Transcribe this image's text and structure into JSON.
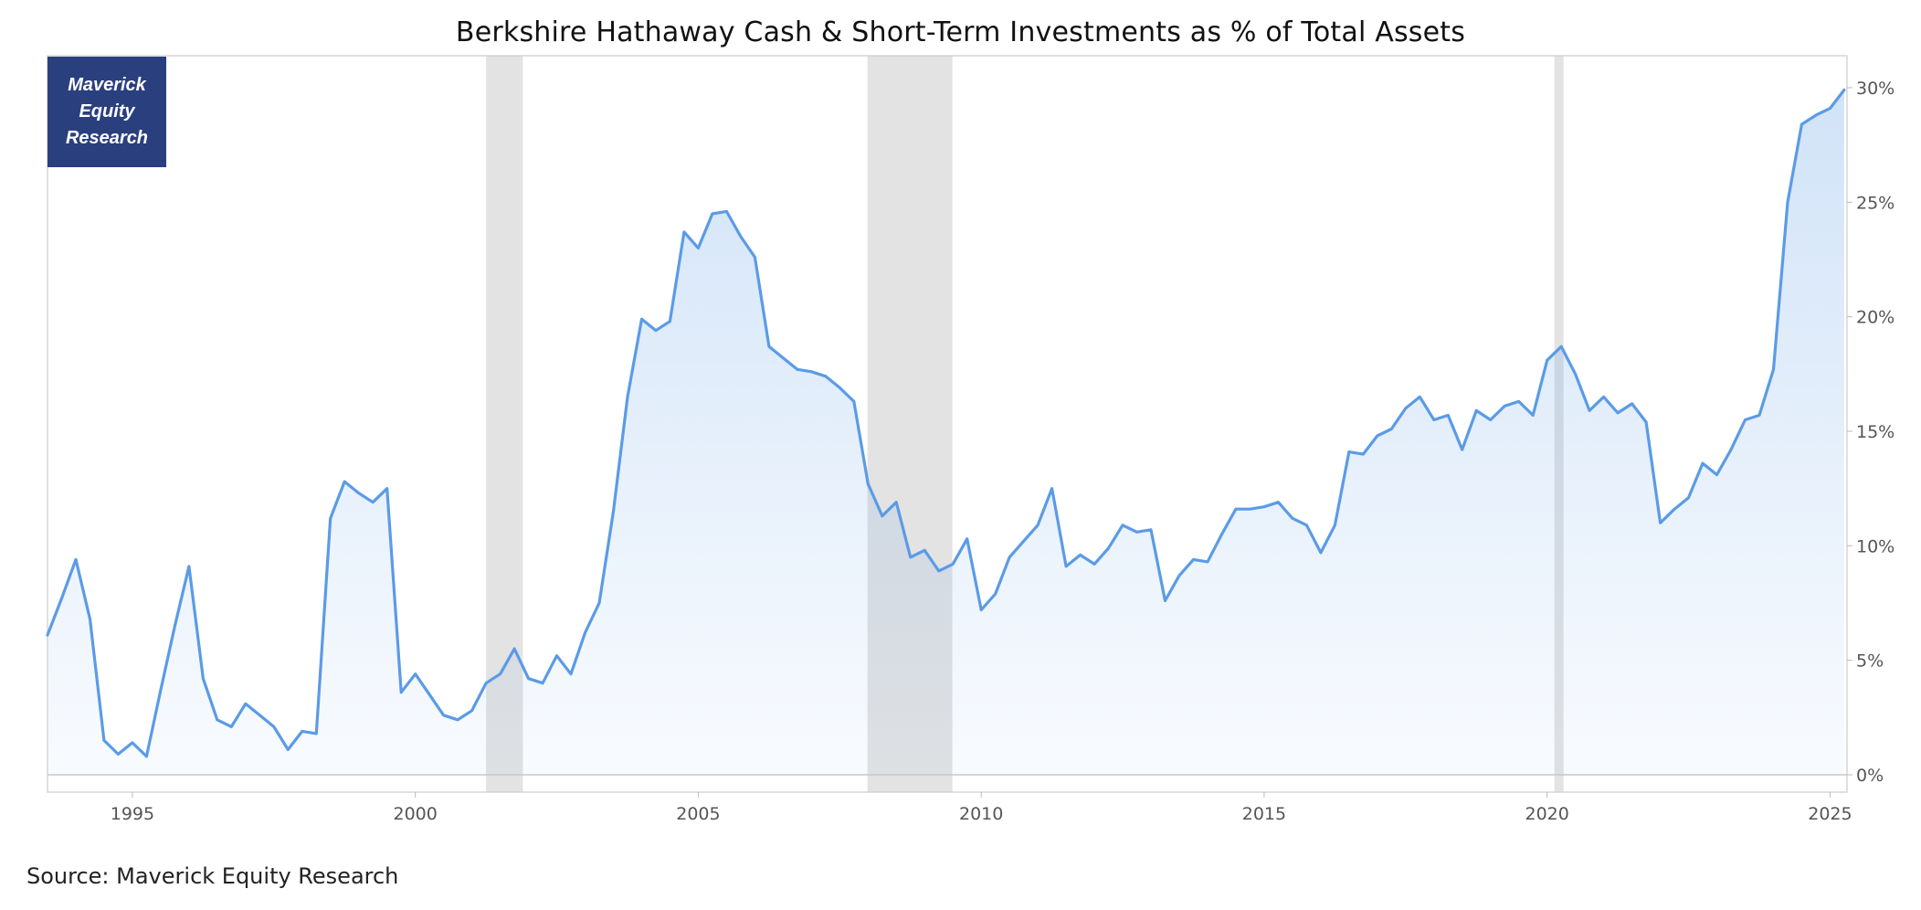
{
  "title": "Berkshire Hathaway Cash & Short-Term Investments as % of Total Assets",
  "logo": {
    "lines": [
      "Maverick",
      "Equity",
      "Research"
    ]
  },
  "source": "Source: Maverick Equity Research",
  "colors": {
    "line": "#5b9be6",
    "recession": "#d9d9d9",
    "logo_bg": "#2a3f7e",
    "axis": "#cccccc"
  },
  "chart_data": {
    "type": "area",
    "title": "Berkshire Hathaway Cash & Short-Term Investments as % of Total Assets",
    "xlabel": "",
    "ylabel": "",
    "xlim": [
      1993.5,
      2025.3
    ],
    "ylim": [
      0,
      30
    ],
    "x_ticks": [
      1995,
      2000,
      2005,
      2010,
      2015,
      2020,
      2025
    ],
    "x_tick_labels": [
      "1995",
      "2000",
      "2005",
      "2010",
      "2015",
      "2020",
      "2025"
    ],
    "y_ticks": [
      0,
      5,
      10,
      15,
      20,
      25,
      30
    ],
    "y_tick_labels": [
      "0%",
      "5%",
      "10%",
      "15%",
      "20%",
      "25%",
      "30%"
    ],
    "y_axis_side": "right",
    "grid": false,
    "legend": "none",
    "recessions": [
      [
        2001.25,
        2001.9
      ],
      [
        2007.99,
        2009.49
      ],
      [
        2020.13,
        2020.29
      ]
    ],
    "series": [
      {
        "x": [
          1993.5,
          1993.75,
          1994.0,
          1994.25,
          1994.5,
          1994.75,
          1995.0,
          1995.25,
          1995.5,
          1995.75,
          1996.0,
          1996.25,
          1996.5,
          1996.75,
          1997.0,
          1997.25,
          1997.5,
          1997.75,
          1998.0,
          1998.25,
          1998.5,
          1998.75,
          1999.0,
          1999.25,
          1999.5,
          1999.75,
          2000.0,
          2000.25,
          2000.5,
          2000.75,
          2001.0,
          2001.25,
          2001.5,
          2001.75,
          2002.0,
          2002.25,
          2002.5,
          2002.75,
          2003.0,
          2003.25,
          2003.5,
          2003.75,
          2004.0,
          2004.25,
          2004.5,
          2004.75,
          2005.0,
          2005.25,
          2005.5,
          2005.75,
          2006.0,
          2006.25,
          2006.5,
          2006.75,
          2007.0,
          2007.25,
          2007.5,
          2007.75,
          2008.0,
          2008.25,
          2008.5,
          2008.75,
          2009.0,
          2009.25,
          2009.5,
          2009.75,
          2010.0,
          2010.25,
          2010.5,
          2010.75,
          2011.0,
          2011.25,
          2011.5,
          2011.75,
          2012.0,
          2012.25,
          2012.5,
          2012.75,
          2013.0,
          2013.25,
          2013.5,
          2013.75,
          2014.0,
          2014.25,
          2014.5,
          2014.75,
          2015.0,
          2015.25,
          2015.5,
          2015.75,
          2016.0,
          2016.25,
          2016.5,
          2016.75,
          2017.0,
          2017.25,
          2017.5,
          2017.75,
          2018.0,
          2018.25,
          2018.5,
          2018.75,
          2019.0,
          2019.25,
          2019.5,
          2019.75,
          2020.0,
          2020.25,
          2020.5,
          2020.75,
          2021.0,
          2021.25,
          2021.5,
          2021.75,
          2022.0,
          2022.25,
          2022.5,
          2022.75,
          2023.0,
          2023.25,
          2023.5,
          2023.75,
          2024.0,
          2024.25,
          2024.5,
          2024.75,
          2025.0,
          2025.25
        ],
        "values": [
          6.1,
          7.7,
          9.4,
          6.8,
          1.5,
          0.9,
          1.4,
          0.8,
          3.7,
          6.5,
          9.1,
          4.2,
          2.4,
          2.1,
          3.1,
          2.6,
          2.1,
          1.1,
          1.9,
          1.8,
          11.2,
          12.8,
          12.3,
          11.9,
          12.5,
          3.6,
          4.4,
          3.5,
          2.6,
          2.4,
          2.8,
          4.0,
          4.4,
          5.5,
          4.2,
          4.0,
          5.2,
          4.4,
          6.2,
          7.5,
          11.5,
          16.5,
          19.9,
          19.4,
          19.8,
          23.7,
          23.0,
          24.5,
          24.6,
          23.5,
          22.6,
          18.7,
          18.2,
          17.7,
          17.6,
          17.4,
          16.9,
          16.3,
          12.7,
          11.3,
          11.9,
          9.5,
          9.8,
          8.9,
          9.2,
          10.3,
          7.2,
          7.9,
          9.5,
          10.2,
          10.9,
          12.5,
          9.1,
          9.6,
          9.2,
          9.9,
          10.9,
          10.6,
          10.7,
          7.6,
          8.7,
          9.4,
          9.3,
          10.5,
          11.6,
          11.6,
          11.7,
          11.9,
          11.2,
          10.9,
          9.7,
          10.9,
          14.1,
          14.0,
          14.8,
          15.1,
          16.0,
          16.5,
          15.5,
          15.7,
          14.2,
          15.9,
          15.5,
          16.1,
          16.3,
          15.7,
          18.1,
          18.7,
          17.5,
          15.9,
          16.5,
          15.8,
          16.2,
          15.4,
          11.0,
          11.6,
          12.1,
          13.6,
          13.1,
          14.2,
          15.5,
          15.7,
          17.7,
          25.0,
          28.4,
          28.8,
          29.1,
          29.9
        ]
      }
    ]
  }
}
